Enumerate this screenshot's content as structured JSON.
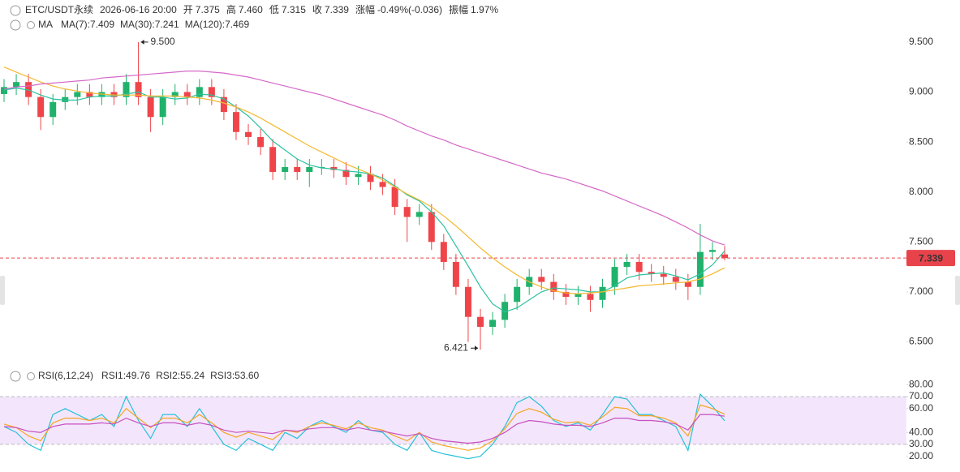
{
  "header": {
    "symbol": "ETC/USDT永续",
    "datetime": "2026-06-16 20:00",
    "value_color": "#e8434b",
    "fields": [
      {
        "label": "开",
        "value": "7.375"
      },
      {
        "label": "高",
        "value": "7.460"
      },
      {
        "label": "低",
        "value": "7.315"
      },
      {
        "label": "收",
        "value": "7.339"
      },
      {
        "label": "涨幅",
        "value": "-0.49%(-0.036)"
      },
      {
        "label": "振幅",
        "value": "1.97%"
      }
    ]
  },
  "chart_data": [
    {
      "type": "candlestick",
      "legend_title": "MA",
      "up_color": "#20b26c",
      "down_color": "#ef454a",
      "open": [
        8.98,
        9.05,
        9.1,
        8.95,
        8.75,
        8.9,
        8.95,
        9.0,
        8.95,
        9.0,
        8.95,
        9.1,
        8.95,
        8.75,
        8.95,
        9.0,
        8.95,
        9.05,
        8.95,
        8.8,
        8.6,
        8.55,
        8.45,
        8.2,
        8.25,
        8.2,
        8.25,
        8.25,
        8.22,
        8.15,
        8.18,
        8.1,
        8.05,
        7.85,
        7.75,
        7.8,
        7.5,
        7.3,
        7.05,
        6.75,
        6.65,
        6.72,
        6.9,
        7.05,
        7.15,
        7.1,
        7.0,
        6.95,
        6.98,
        6.92,
        7.05,
        7.25,
        7.3,
        7.2,
        7.18,
        7.15,
        7.1,
        7.05,
        7.4,
        7.375
      ],
      "high": [
        9.13,
        9.18,
        9.18,
        9.03,
        8.98,
        9.03,
        9.08,
        9.08,
        9.08,
        9.08,
        9.18,
        9.5,
        9.03,
        9.03,
        9.08,
        9.08,
        9.13,
        9.13,
        9.03,
        8.88,
        8.68,
        8.63,
        8.53,
        8.33,
        8.33,
        8.33,
        8.33,
        8.33,
        8.3,
        8.26,
        8.26,
        8.18,
        8.13,
        7.93,
        7.88,
        7.88,
        7.58,
        7.38,
        7.13,
        6.83,
        6.8,
        6.98,
        7.13,
        7.23,
        7.23,
        7.18,
        7.08,
        7.06,
        7.06,
        7.13,
        7.33,
        7.38,
        7.38,
        7.28,
        7.26,
        7.23,
        7.18,
        7.68,
        7.5,
        7.46
      ],
      "low": [
        8.9,
        8.97,
        8.87,
        8.62,
        8.67,
        8.82,
        8.87,
        8.87,
        8.87,
        8.87,
        8.87,
        8.87,
        8.6,
        8.67,
        8.87,
        8.87,
        8.87,
        8.87,
        8.72,
        8.52,
        8.47,
        8.37,
        8.12,
        8.12,
        8.12,
        8.05,
        8.17,
        8.14,
        8.07,
        8.07,
        8.02,
        7.97,
        7.77,
        7.5,
        7.67,
        7.42,
        7.22,
        6.97,
        6.5,
        6.421,
        6.57,
        6.64,
        6.82,
        6.97,
        7.02,
        6.92,
        6.87,
        6.87,
        6.8,
        6.84,
        6.97,
        7.17,
        7.12,
        7.1,
        7.07,
        7.02,
        6.92,
        6.97,
        7.32,
        7.315
      ],
      "close": [
        9.05,
        9.1,
        8.95,
        8.75,
        8.9,
        8.95,
        9.0,
        8.95,
        9.0,
        8.95,
        9.1,
        8.95,
        8.75,
        8.95,
        9.0,
        8.95,
        9.05,
        8.95,
        8.8,
        8.6,
        8.55,
        8.45,
        8.2,
        8.25,
        8.2,
        8.25,
        8.25,
        8.22,
        8.15,
        8.18,
        8.1,
        8.05,
        7.85,
        7.75,
        7.8,
        7.5,
        7.3,
        7.05,
        6.75,
        6.65,
        6.72,
        6.9,
        7.05,
        7.15,
        7.1,
        7.0,
        6.95,
        6.98,
        6.92,
        7.05,
        7.25,
        7.3,
        7.2,
        7.18,
        7.15,
        7.1,
        7.05,
        7.4,
        7.42,
        7.339
      ],
      "series": [
        {
          "name": "MA(7):7.409",
          "color": "#2bc2a0",
          "values": [
            9.02,
            9.04,
            9.02,
            8.97,
            8.93,
            8.92,
            8.92,
            8.95,
            8.96,
            8.96,
            8.98,
            9.0,
            8.95,
            8.95,
            8.93,
            8.94,
            8.98,
            8.97,
            8.93,
            8.85,
            8.76,
            8.64,
            8.51,
            8.42,
            8.33,
            8.27,
            8.24,
            8.23,
            8.21,
            8.2,
            8.18,
            8.14,
            8.06,
            7.97,
            7.91,
            7.8,
            7.66,
            7.46,
            7.26,
            7.05,
            6.88,
            6.8,
            6.84,
            6.92,
            7.0,
            7.04,
            7.03,
            7.02,
            7.0,
            7.0,
            7.06,
            7.14,
            7.17,
            7.18,
            7.19,
            7.16,
            7.12,
            7.18,
            7.27,
            7.409
          ]
        },
        {
          "name": "MA(30):7.241",
          "color": "#f5b82e",
          "values": [
            9.25,
            9.2,
            9.15,
            9.1,
            9.06,
            9.03,
            9.01,
            8.99,
            8.98,
            8.97,
            8.97,
            8.97,
            8.96,
            8.96,
            8.96,
            8.95,
            8.94,
            8.92,
            8.89,
            8.85,
            8.8,
            8.74,
            8.67,
            8.6,
            8.53,
            8.46,
            8.4,
            8.34,
            8.28,
            8.23,
            8.18,
            8.12,
            8.05,
            7.98,
            7.92,
            7.85,
            7.76,
            7.66,
            7.55,
            7.44,
            7.34,
            7.25,
            7.17,
            7.1,
            7.05,
            7.01,
            6.99,
            6.98,
            6.99,
            7.0,
            7.02,
            7.04,
            7.06,
            7.07,
            7.08,
            7.09,
            7.1,
            7.13,
            7.18,
            7.241
          ]
        },
        {
          "name": "MA(120):7.469",
          "color": "#d568c8",
          "values": [
            9.03,
            9.05,
            9.06,
            9.08,
            9.09,
            9.1,
            9.11,
            9.12,
            9.14,
            9.15,
            9.16,
            9.17,
            9.18,
            9.19,
            9.2,
            9.21,
            9.21,
            9.2,
            9.19,
            9.17,
            9.15,
            9.12,
            9.09,
            9.06,
            9.03,
            9.0,
            8.97,
            8.93,
            8.89,
            8.85,
            8.81,
            8.77,
            8.72,
            8.66,
            8.61,
            8.56,
            8.52,
            8.47,
            8.43,
            8.39,
            8.35,
            8.31,
            8.27,
            8.23,
            8.19,
            8.16,
            8.13,
            8.09,
            8.05,
            8.01,
            7.96,
            7.91,
            7.86,
            7.81,
            7.76,
            7.7,
            7.64,
            7.57,
            7.51,
            7.469
          ]
        }
      ],
      "ylim": [
        6.35,
        9.84
      ],
      "yticks": [
        {
          "value": 9.5,
          "label": "9.500"
        },
        {
          "value": 9,
          "label": "9.000"
        },
        {
          "value": 8.5,
          "label": "8.500"
        },
        {
          "value": 8,
          "label": "8.000"
        },
        {
          "value": 7.5,
          "label": "7.500"
        },
        {
          "value": 7,
          "label": "7.000"
        },
        {
          "value": 6.5,
          "label": "6.500"
        }
      ],
      "last_price": 7.339,
      "last_color": "#e8434b",
      "high_annotation": {
        "value": 9.5,
        "label": "9.500"
      },
      "low_annotation": 6.421
    },
    {
      "type": "line",
      "legend_title": "RSI(6,12,24)",
      "series": [
        {
          "name": "RSI1:49.76",
          "color": "#27c1d8",
          "values": [
            45,
            40,
            30,
            25,
            55,
            60,
            55,
            50,
            55,
            45,
            70,
            50,
            35,
            55,
            55,
            45,
            60,
            45,
            30,
            25,
            35,
            30,
            25,
            40,
            35,
            45,
            50,
            45,
            40,
            50,
            42,
            40,
            30,
            25,
            40,
            25,
            22,
            20,
            18,
            20,
            30,
            45,
            65,
            70,
            62,
            50,
            45,
            48,
            42,
            55,
            70,
            68,
            55,
            55,
            50,
            45,
            25,
            72,
            62,
            49.76
          ]
        },
        {
          "name": "RSI2:55.24",
          "color": "#f5a623",
          "values": [
            47,
            44,
            37,
            33,
            48,
            52,
            52,
            50,
            52,
            48,
            60,
            52,
            44,
            52,
            52,
            48,
            55,
            48,
            40,
            36,
            40,
            37,
            34,
            42,
            40,
            45,
            48,
            46,
            43,
            48,
            44,
            42,
            37,
            33,
            40,
            32,
            29,
            27,
            25,
            27,
            33,
            43,
            56,
            60,
            57,
            51,
            48,
            49,
            46,
            53,
            61,
            60,
            54,
            54,
            52,
            48,
            37,
            63,
            60,
            55.24
          ]
        },
        {
          "name": "RSI3:53.60",
          "color": "#c84fbf",
          "values": [
            45,
            44,
            41,
            40,
            45,
            47,
            47,
            47,
            48,
            47,
            52,
            48,
            45,
            48,
            48,
            46,
            48,
            46,
            42,
            40,
            41,
            40,
            39,
            42,
            41,
            43,
            44,
            44,
            42,
            44,
            42,
            41,
            39,
            37,
            39,
            35,
            33,
            32,
            31,
            32,
            35,
            40,
            47,
            50,
            49,
            47,
            46,
            46,
            45,
            48,
            52,
            52,
            50,
            50,
            49,
            47,
            42,
            55,
            55,
            53.6
          ]
        }
      ],
      "ylim": [
        15,
        85
      ],
      "yticks": [
        {
          "value": 80,
          "label": "80.00"
        },
        {
          "value": 70,
          "label": "70.00"
        },
        {
          "value": 60,
          "label": "60.00"
        },
        {
          "value": 40,
          "label": "40.00"
        },
        {
          "value": 30,
          "label": "30.00"
        },
        {
          "value": 20,
          "label": "20.00"
        }
      ],
      "band": {
        "range": [
          30,
          70
        ],
        "color": "#f3e6fc"
      }
    }
  ]
}
